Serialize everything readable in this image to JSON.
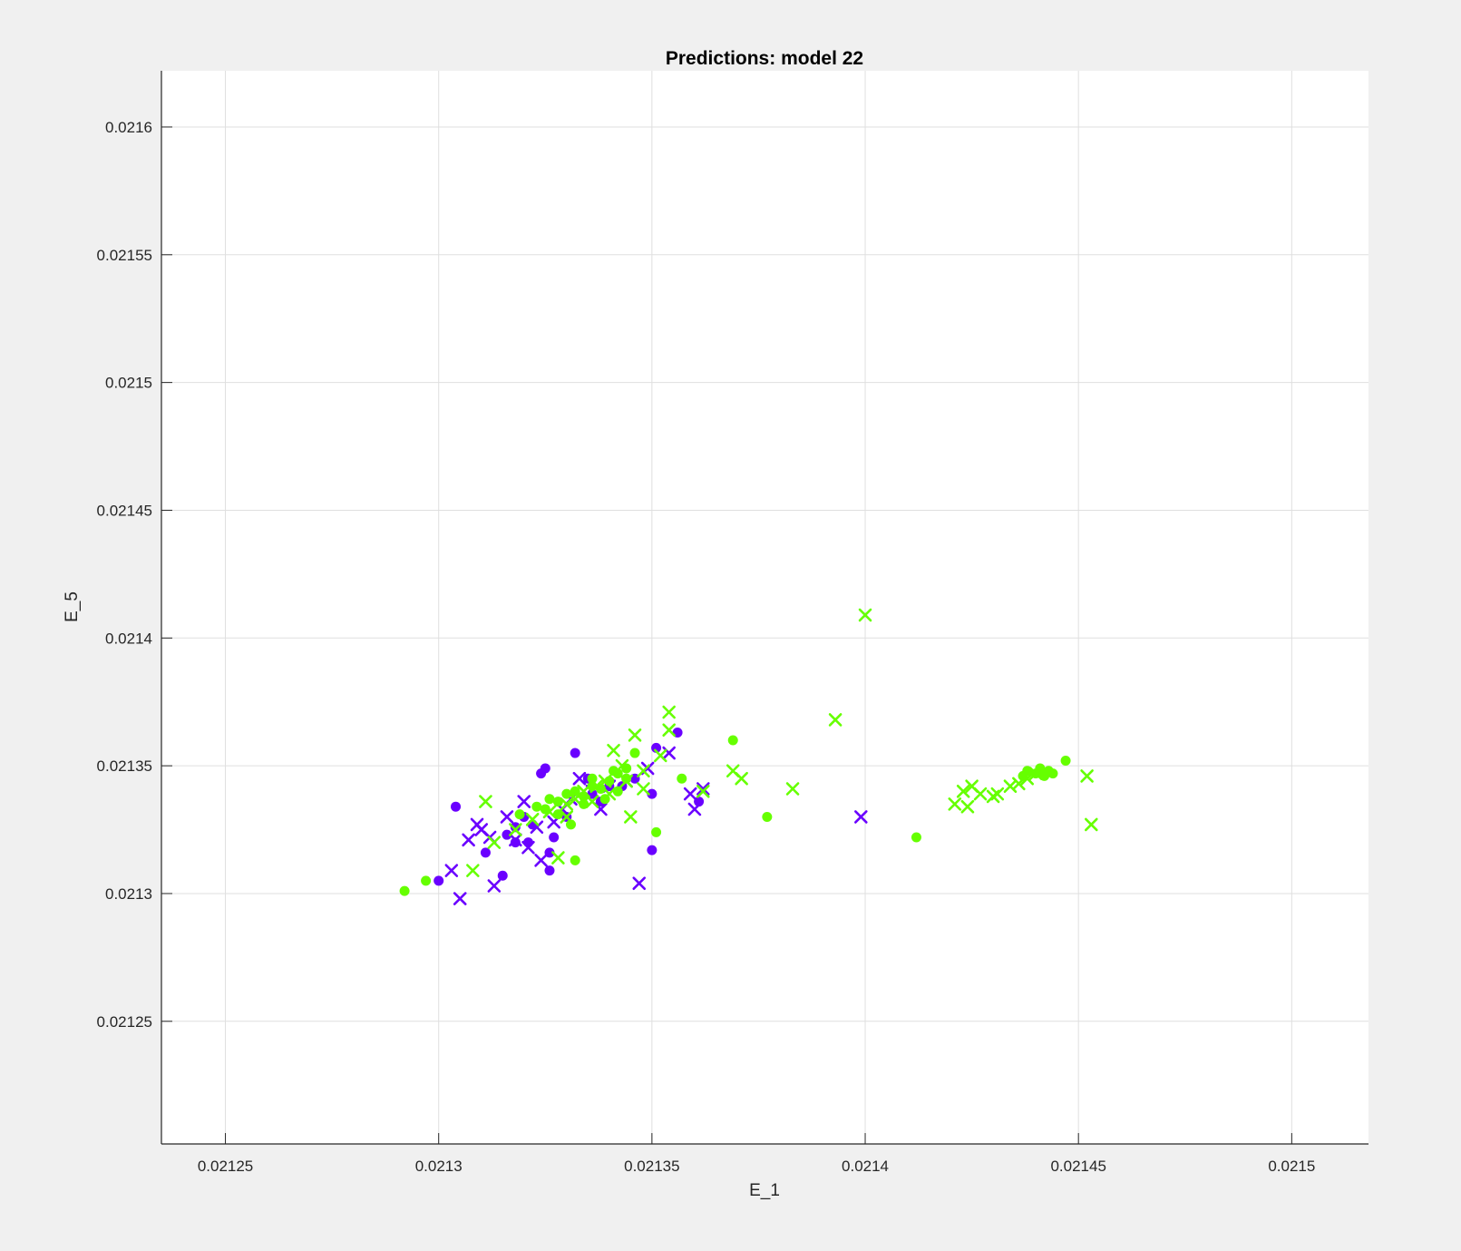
{
  "chart_data": {
    "type": "scatter",
    "title": "Predictions: model 22",
    "xlabel": "E_1",
    "ylabel": "E_5",
    "xlim": [
      0.021235,
      0.021518
    ],
    "ylim": [
      0.021202,
      0.021622
    ],
    "xticks": [
      0.02125,
      0.0213,
      0.02135,
      0.0214,
      0.02145,
      0.0215
    ],
    "xtick_labels": [
      "0.02125",
      "0.0213",
      "0.02135",
      "0.0214",
      "0.02145",
      "0.0215"
    ],
    "yticks": [
      0.02125,
      0.0213,
      0.02135,
      0.0214,
      0.02145,
      0.0215,
      0.02155,
      0.0216
    ],
    "ytick_labels": [
      "0.02125",
      "0.0213",
      "0.02135",
      "0.0214",
      "0.02145",
      "0.0215",
      "0.02155",
      "0.0216"
    ],
    "grid": true,
    "colors": {
      "purple": "#6a00ff",
      "green": "#66ff00"
    },
    "series": [
      {
        "color": "#6a00ff",
        "marker": "circle",
        "points": [
          [
            0.021304,
            0.021334
          ],
          [
            0.0213,
            0.021305
          ],
          [
            0.021315,
            0.021307
          ],
          [
            0.021311,
            0.021316
          ],
          [
            0.021318,
            0.02132
          ],
          [
            0.021321,
            0.02132
          ],
          [
            0.021324,
            0.021347
          ],
          [
            0.021325,
            0.021349
          ],
          [
            0.021326,
            0.021309
          ],
          [
            0.021326,
            0.021316
          ],
          [
            0.021327,
            0.021322
          ],
          [
            0.021332,
            0.021355
          ],
          [
            0.02133,
            0.02133
          ],
          [
            0.021335,
            0.021345
          ],
          [
            0.021336,
            0.021339
          ],
          [
            0.021338,
            0.021336
          ],
          [
            0.02134,
            0.021342
          ],
          [
            0.021343,
            0.021342
          ],
          [
            0.021346,
            0.021345
          ],
          [
            0.02135,
            0.021317
          ],
          [
            0.02135,
            0.021339
          ],
          [
            0.021351,
            0.021357
          ],
          [
            0.021356,
            0.021363
          ],
          [
            0.021361,
            0.021336
          ],
          [
            0.02132,
            0.02133
          ],
          [
            0.021322,
            0.021327
          ],
          [
            0.021318,
            0.021326
          ],
          [
            0.021316,
            0.021323
          ]
        ]
      },
      {
        "color": "#6a00ff",
        "marker": "x",
        "points": [
          [
            0.021305,
            0.021298
          ],
          [
            0.021303,
            0.021309
          ],
          [
            0.021307,
            0.021321
          ],
          [
            0.021309,
            0.021327
          ],
          [
            0.021313,
            0.021303
          ],
          [
            0.021312,
            0.021322
          ],
          [
            0.021316,
            0.02133
          ],
          [
            0.02132,
            0.021336
          ],
          [
            0.021323,
            0.021326
          ],
          [
            0.021324,
            0.021313
          ],
          [
            0.021327,
            0.021328
          ],
          [
            0.021329,
            0.021333
          ],
          [
            0.021331,
            0.021337
          ],
          [
            0.021333,
            0.021345
          ],
          [
            0.021336,
            0.02134
          ],
          [
            0.021338,
            0.021333
          ],
          [
            0.02134,
            0.021342
          ],
          [
            0.021344,
            0.021344
          ],
          [
            0.021347,
            0.021304
          ],
          [
            0.021349,
            0.021349
          ],
          [
            0.021354,
            0.021355
          ],
          [
            0.021359,
            0.021339
          ],
          [
            0.02136,
            0.021333
          ],
          [
            0.021362,
            0.021341
          ],
          [
            0.021399,
            0.02133
          ],
          [
            0.021318,
            0.021321
          ],
          [
            0.021321,
            0.021318
          ],
          [
            0.02131,
            0.021325
          ]
        ]
      },
      {
        "color": "#66ff00",
        "marker": "circle",
        "points": [
          [
            0.021292,
            0.021301
          ],
          [
            0.021297,
            0.021305
          ],
          [
            0.021331,
            0.021327
          ],
          [
            0.021332,
            0.021313
          ],
          [
            0.021319,
            0.021331
          ],
          [
            0.021323,
            0.021334
          ],
          [
            0.021326,
            0.021337
          ],
          [
            0.021328,
            0.021336
          ],
          [
            0.02133,
            0.021339
          ],
          [
            0.021332,
            0.02134
          ],
          [
            0.021334,
            0.021338
          ],
          [
            0.021336,
            0.021342
          ],
          [
            0.021338,
            0.021341
          ],
          [
            0.02134,
            0.021344
          ],
          [
            0.021342,
            0.021347
          ],
          [
            0.021344,
            0.021349
          ],
          [
            0.021346,
            0.021355
          ],
          [
            0.021351,
            0.021324
          ],
          [
            0.021357,
            0.021345
          ],
          [
            0.021369,
            0.02136
          ],
          [
            0.021377,
            0.02133
          ],
          [
            0.021412,
            0.021322
          ],
          [
            0.021437,
            0.021346
          ],
          [
            0.021438,
            0.021348
          ],
          [
            0.02144,
            0.021347
          ],
          [
            0.021441,
            0.021349
          ],
          [
            0.021442,
            0.021346
          ],
          [
            0.021443,
            0.021348
          ],
          [
            0.021444,
            0.021347
          ],
          [
            0.021447,
            0.021352
          ],
          [
            0.021328,
            0.021331
          ],
          [
            0.021334,
            0.021335
          ],
          [
            0.021339,
            0.021337
          ],
          [
            0.021342,
            0.02134
          ],
          [
            0.021325,
            0.021333
          ],
          [
            0.021336,
            0.021345
          ],
          [
            0.021341,
            0.021348
          ],
          [
            0.021344,
            0.021345
          ]
        ]
      },
      {
        "color": "#66ff00",
        "marker": "x",
        "points": [
          [
            0.021308,
            0.021309
          ],
          [
            0.021311,
            0.021336
          ],
          [
            0.021313,
            0.02132
          ],
          [
            0.021318,
            0.021325
          ],
          [
            0.021322,
            0.021329
          ],
          [
            0.021326,
            0.021332
          ],
          [
            0.021328,
            0.021314
          ],
          [
            0.02133,
            0.021335
          ],
          [
            0.021332,
            0.021337
          ],
          [
            0.021334,
            0.02134
          ],
          [
            0.021337,
            0.021342
          ],
          [
            0.021339,
            0.021344
          ],
          [
            0.021341,
            0.021356
          ],
          [
            0.021343,
            0.02135
          ],
          [
            0.021345,
            0.02133
          ],
          [
            0.021346,
            0.021362
          ],
          [
            0.021348,
            0.021341
          ],
          [
            0.021352,
            0.021354
          ],
          [
            0.021354,
            0.021371
          ],
          [
            0.021354,
            0.021364
          ],
          [
            0.021362,
            0.02134
          ],
          [
            0.021369,
            0.021348
          ],
          [
            0.021371,
            0.021345
          ],
          [
            0.021383,
            0.021341
          ],
          [
            0.021393,
            0.021368
          ],
          [
            0.0214,
            0.021409
          ],
          [
            0.021421,
            0.021335
          ],
          [
            0.021423,
            0.02134
          ],
          [
            0.021424,
            0.021334
          ],
          [
            0.021425,
            0.021342
          ],
          [
            0.021427,
            0.021339
          ],
          [
            0.02143,
            0.021338
          ],
          [
            0.021431,
            0.021339
          ],
          [
            0.021434,
            0.021342
          ],
          [
            0.021436,
            0.021343
          ],
          [
            0.021438,
            0.021345
          ],
          [
            0.02144,
            0.021347
          ],
          [
            0.021452,
            0.021346
          ],
          [
            0.021453,
            0.021327
          ],
          [
            0.02133,
            0.02133
          ],
          [
            0.021336,
            0.021336
          ],
          [
            0.02134,
            0.021339
          ],
          [
            0.021344,
            0.021344
          ],
          [
            0.021348,
            0.021348
          ]
        ]
      }
    ]
  }
}
